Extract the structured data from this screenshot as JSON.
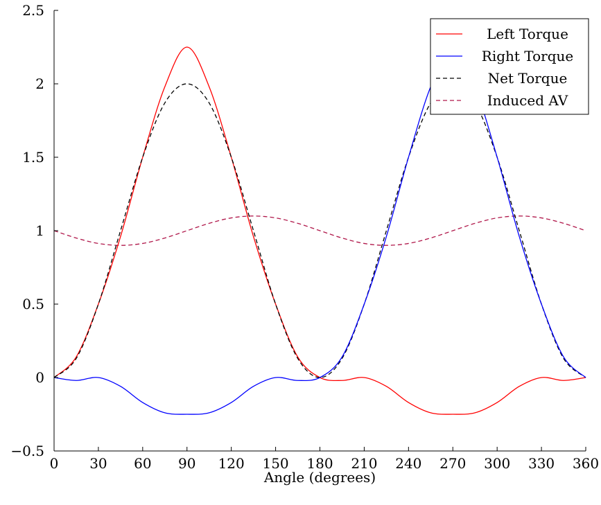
{
  "chart_data": {
    "type": "line",
    "xlabel": "Angle (degrees)",
    "ylabel": "",
    "title": "",
    "xlim": [
      0,
      360
    ],
    "ylim": [
      -0.5,
      2.5
    ],
    "xticks": [
      0,
      30,
      60,
      90,
      120,
      150,
      180,
      210,
      240,
      270,
      300,
      330,
      360
    ],
    "yticks": [
      -0.5,
      0,
      0.5,
      1,
      1.5,
      2,
      2.5
    ],
    "ytick_labels": [
      "−0.5",
      "0",
      "0.5",
      "1",
      "1.5",
      "2",
      "2.5"
    ],
    "grid": false,
    "legend_position": "top-right",
    "x": [
      0,
      15,
      30,
      45,
      60,
      75,
      90,
      105,
      120,
      135,
      150,
      165,
      180,
      195,
      210,
      225,
      240,
      255,
      270,
      285,
      300,
      315,
      330,
      345,
      360
    ],
    "series": [
      {
        "name": "Left Torque",
        "color": "#ff0000",
        "dash": "solid",
        "values": [
          0,
          0.14,
          0.5,
          0.96,
          1.5,
          1.98,
          2.25,
          1.98,
          1.5,
          0.96,
          0.5,
          0.14,
          0,
          -0.02,
          0,
          -0.06,
          -0.17,
          -0.24,
          -0.25,
          -0.24,
          -0.17,
          -0.06,
          0,
          -0.02,
          0
        ]
      },
      {
        "name": "Right Torque",
        "color": "#0000ff",
        "dash": "solid",
        "values": [
          0,
          -0.02,
          0,
          -0.06,
          -0.17,
          -0.24,
          -0.25,
          -0.24,
          -0.17,
          -0.06,
          0,
          -0.02,
          0,
          0.14,
          0.5,
          0.96,
          1.5,
          1.98,
          2.25,
          1.98,
          1.5,
          0.96,
          0.5,
          0.14,
          0
        ]
      },
      {
        "name": "Net Torque",
        "color": "#000000",
        "dash": "dashed",
        "values": [
          0,
          0.13,
          0.5,
          1.0,
          1.5,
          1.87,
          2.0,
          1.87,
          1.5,
          1.0,
          0.5,
          0.13,
          0,
          0.13,
          0.5,
          1.0,
          1.5,
          1.87,
          2.0,
          1.87,
          1.5,
          1.0,
          0.5,
          0.13,
          0
        ]
      },
      {
        "name": "Induced AV",
        "color": "#b0174a",
        "dash": "dashed",
        "values": [
          1.0,
          0.95,
          0.913,
          0.9,
          0.913,
          0.95,
          1.0,
          1.05,
          1.087,
          1.1,
          1.087,
          1.05,
          1.0,
          0.95,
          0.913,
          0.9,
          0.913,
          0.95,
          1.0,
          1.05,
          1.087,
          1.1,
          1.087,
          1.05,
          1.0
        ]
      }
    ]
  }
}
